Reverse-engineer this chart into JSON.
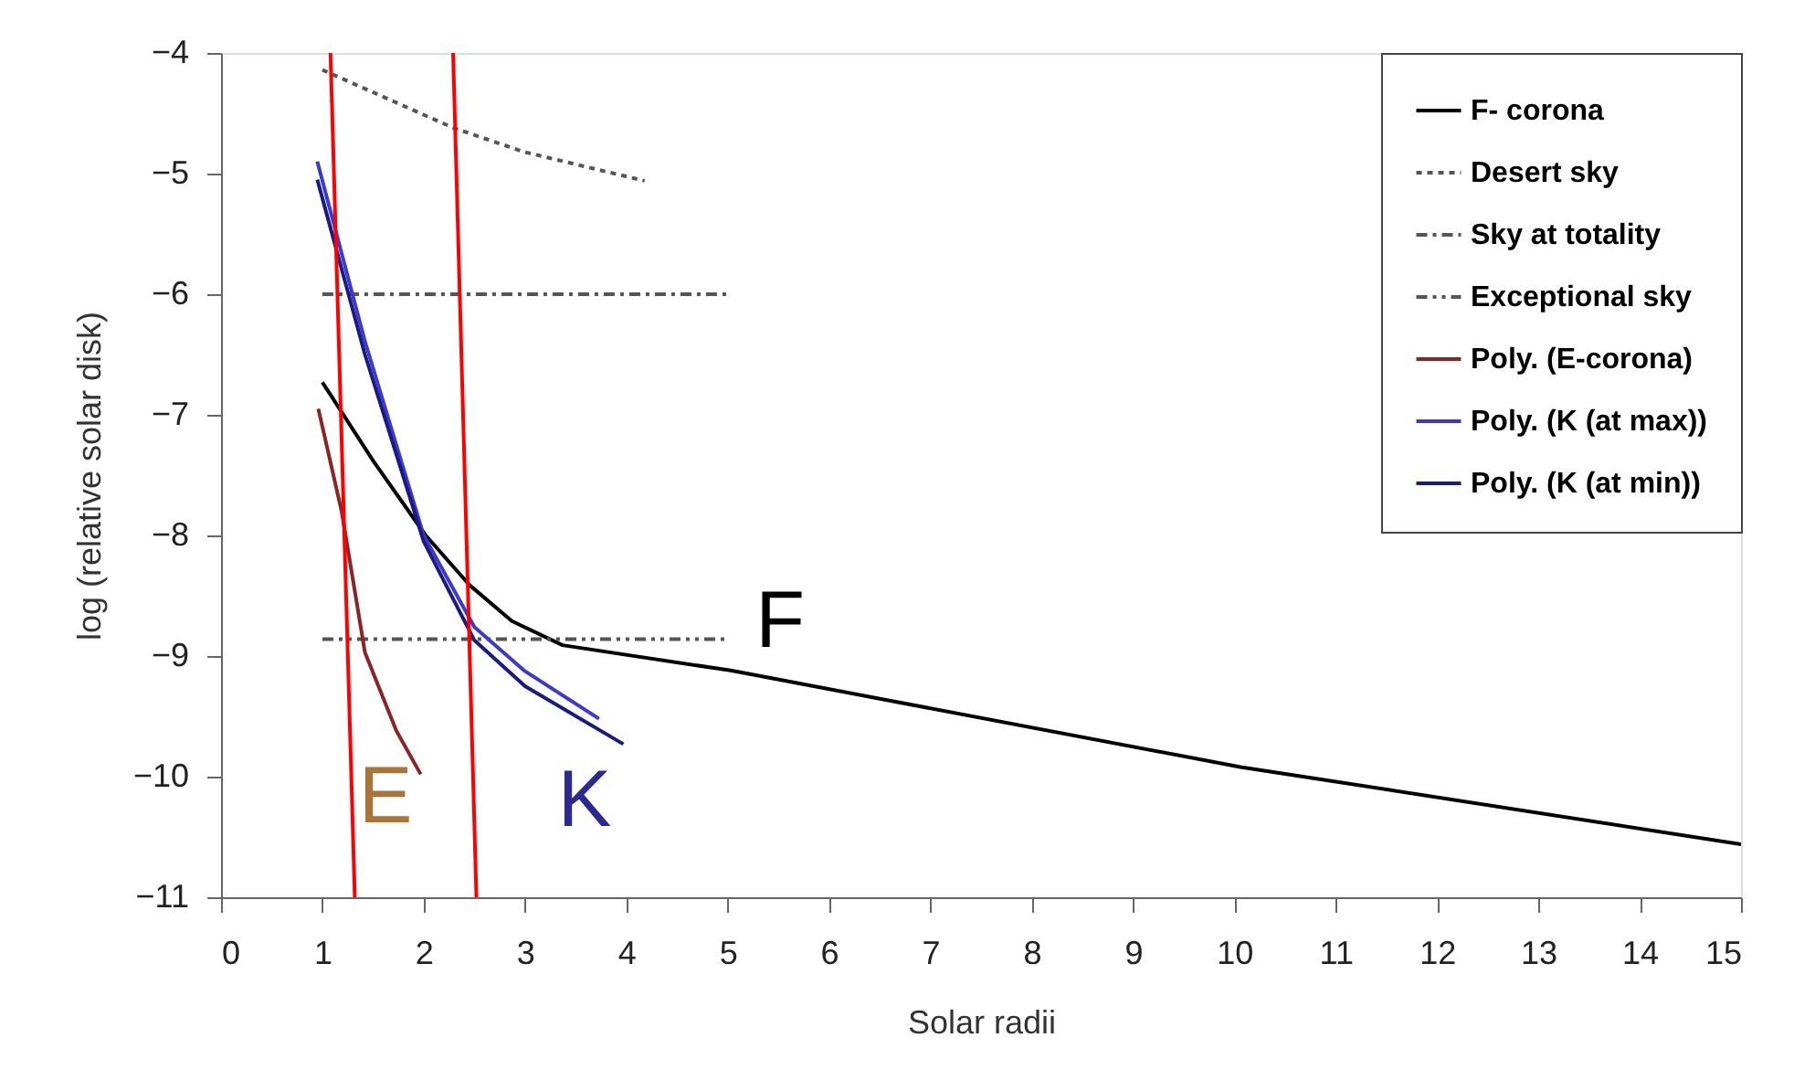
{
  "chart_data": {
    "type": "line",
    "xlabel": "Solar radii",
    "ylabel": "log (relative solar disk)",
    "xlim": [
      0,
      15
    ],
    "ylim": [
      -11,
      -4
    ],
    "xticks": [
      0,
      1,
      2,
      3,
      4,
      5,
      6,
      7,
      8,
      9,
      10,
      11,
      12,
      13,
      14,
      15
    ],
    "yticks": [
      -11,
      -10,
      -9,
      -8,
      -7,
      -6,
      -5,
      -4
    ],
    "grid": false,
    "legend": "top right",
    "marker": "none",
    "series": [
      {
        "name": "F- corona",
        "color": "#000000",
        "line_style": "solid",
        "x": [
          1,
          1.5,
          2.02,
          2.45,
          2.87,
          3.37,
          5.03,
          10.06,
          15
        ],
        "values": [
          -6.73,
          -7.38,
          -8.0,
          -8.41,
          -8.71,
          -8.91,
          -9.12,
          -9.92,
          -10.56
        ]
      },
      {
        "name": "Desert sky",
        "color": "#555555",
        "line_style": "dotted",
        "x": [
          1.0,
          2.29,
          2.99,
          4.18
        ],
        "values": [
          -4.14,
          -4.62,
          -4.82,
          -5.06
        ]
      },
      {
        "name": "Sky at totality",
        "color": "#555555",
        "line_style": "dashdot",
        "x": [
          1,
          5
        ],
        "values": [
          -6,
          -6
        ]
      },
      {
        "name": "Exceptional sky",
        "color": "#555555",
        "line_style": "dashdotdot",
        "x": [
          1,
          5
        ],
        "values": [
          -8.86,
          -8.86
        ]
      },
      {
        "name": "Poly. (E-corona)",
        "color": "#8b2525",
        "line_style": "solid",
        "x": [
          0.96,
          1.19,
          1.42,
          1.73,
          1.97
        ],
        "values": [
          -6.95,
          -7.8,
          -8.97,
          -9.62,
          -9.98
        ]
      },
      {
        "name": "Poly. (K (at max))",
        "color": "#3a3ad0",
        "line_style": "solid",
        "x": [
          0.95,
          1.42,
          2.0,
          2.5,
          2.99,
          3.73
        ],
        "values": [
          -4.9,
          -6.39,
          -8.0,
          -8.76,
          -9.12,
          -9.52
        ]
      },
      {
        "name": "Poly. (K (at min))",
        "color": "#1a1a80",
        "line_style": "solid",
        "x": [
          0.95,
          1.42,
          2.0,
          2.5,
          3.0,
          3.97
        ],
        "values": [
          -5.05,
          -6.5,
          -8.05,
          -8.87,
          -9.25,
          -9.73
        ]
      },
      {
        "color": "#ff0000",
        "line_style": "solid",
        "x": [
          1.08,
          1.32
        ],
        "values": [
          -4,
          -11
        ]
      },
      {
        "color": "#ff0000",
        "line_style": "solid",
        "x": [
          2.29,
          2.52
        ],
        "values": [
          -4,
          -11
        ]
      }
    ],
    "annotations": [
      "F",
      "E",
      "K"
    ]
  }
}
